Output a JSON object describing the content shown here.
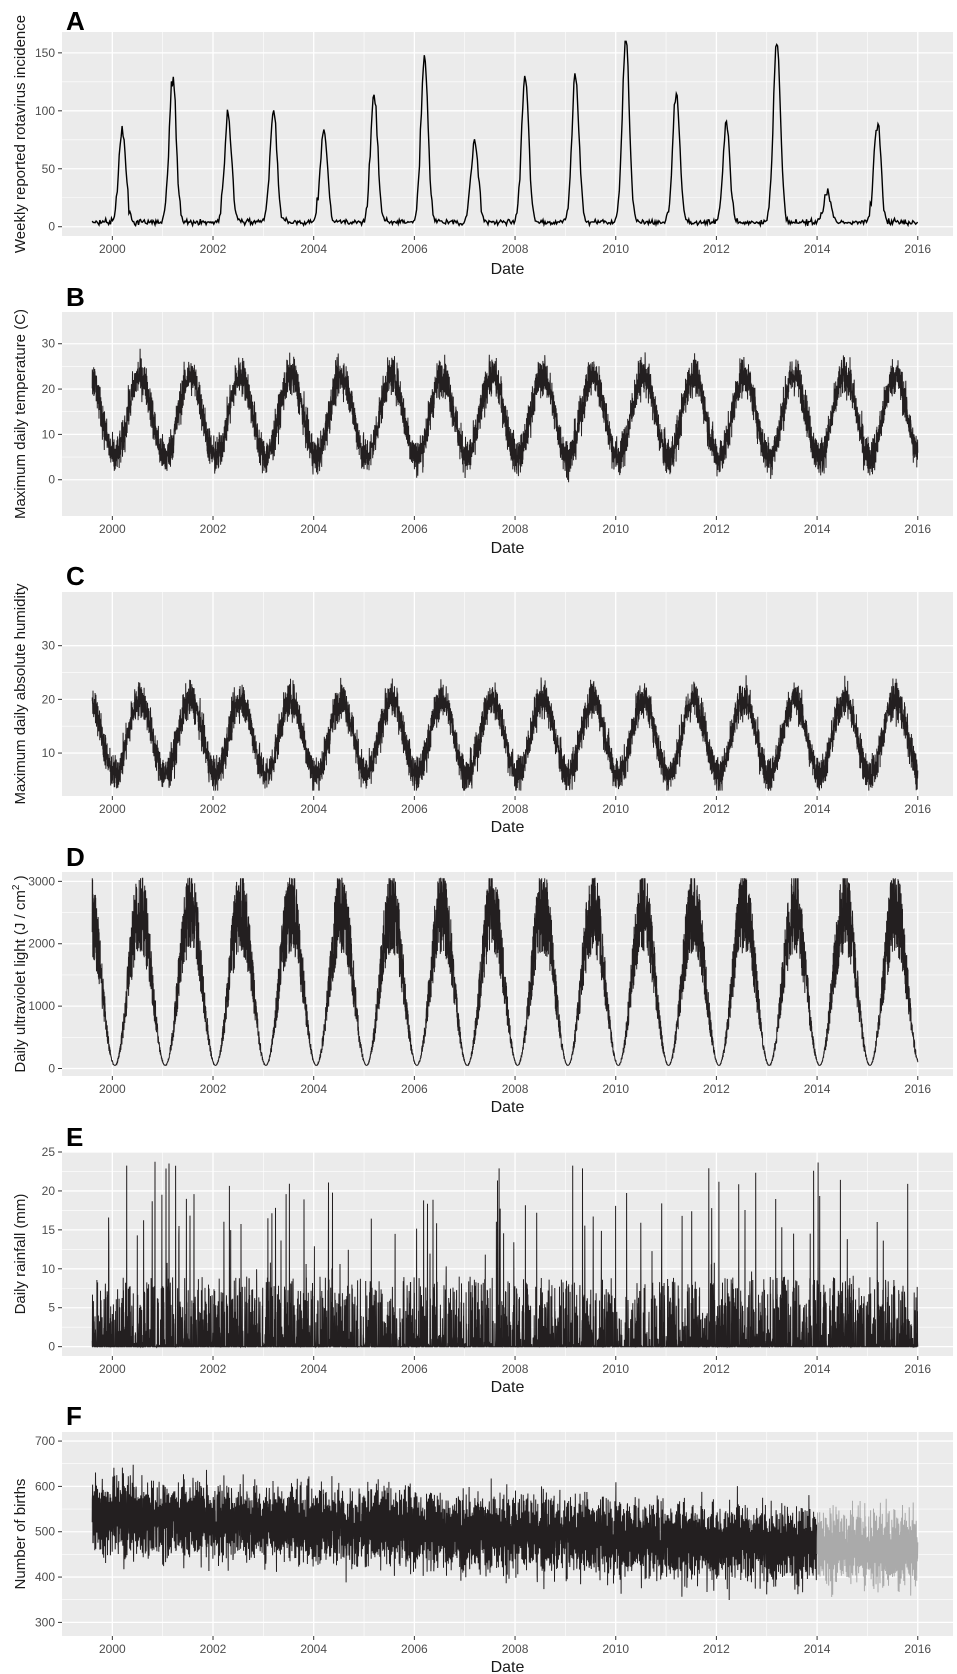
{
  "chart_data": [
    {
      "panel": "A",
      "type": "line",
      "xlabel": "Date",
      "ylabel": "Weekly reported rotavirus incidence",
      "x_ticks": [
        "2000",
        "2002",
        "2004",
        "2006",
        "2008",
        "2010",
        "2012",
        "2014",
        "2016"
      ],
      "y_ticks": [
        "0",
        "50",
        "100",
        "150"
      ],
      "xlim": [
        1999.0,
        2016.7
      ],
      "ylim": [
        -8,
        168
      ],
      "x_start": 1999.6,
      "x_end": 2016.0,
      "baseline": 3,
      "noise": 4,
      "peaks": [
        {
          "x": 2000.2,
          "y": 80
        },
        {
          "x": 2001.2,
          "y": 126
        },
        {
          "x": 2002.3,
          "y": 94
        },
        {
          "x": 2003.2,
          "y": 96
        },
        {
          "x": 2004.2,
          "y": 82
        },
        {
          "x": 2005.2,
          "y": 111
        },
        {
          "x": 2006.2,
          "y": 141
        },
        {
          "x": 2007.2,
          "y": 74
        },
        {
          "x": 2008.2,
          "y": 127
        },
        {
          "x": 2009.2,
          "y": 127
        },
        {
          "x": 2010.2,
          "y": 159
        },
        {
          "x": 2011.2,
          "y": 110
        },
        {
          "x": 2012.2,
          "y": 85
        },
        {
          "x": 2013.2,
          "y": 159
        },
        {
          "x": 2014.2,
          "y": 27
        },
        {
          "x": 2015.2,
          "y": 87
        }
      ],
      "grid": true,
      "series": [
        {
          "values": "weekly",
          "color": "#000000"
        }
      ]
    },
    {
      "panel": "B",
      "type": "line",
      "xlabel": "Date",
      "ylabel": "Maximum daily temperature (C)",
      "x_ticks": [
        "2000",
        "2002",
        "2004",
        "2006",
        "2008",
        "2010",
        "2012",
        "2014",
        "2016"
      ],
      "y_ticks": [
        "0",
        "10",
        "20",
        "30"
      ],
      "xlim": [
        1999.0,
        2016.7
      ],
      "ylim": [
        -8,
        37
      ],
      "x_start": 1999.6,
      "x_end": 2016.0,
      "seasonal_mean": 14,
      "seasonal_amplitude": 9,
      "noise": 5,
      "range_min": -6,
      "range_max": 35,
      "grid": true,
      "series": [
        {
          "values": "daily",
          "color": "#231f20"
        }
      ]
    },
    {
      "panel": "C",
      "type": "line",
      "xlabel": "Date",
      "ylabel": "Maximum daily absolute humidity",
      "x_ticks": [
        "2000",
        "2002",
        "2004",
        "2006",
        "2008",
        "2010",
        "2012",
        "2014",
        "2016"
      ],
      "y_ticks": [
        "10",
        "20",
        "30"
      ],
      "xlim": [
        1999.0,
        2016.7
      ],
      "ylim": [
        2,
        40
      ],
      "x_start": 1999.6,
      "x_end": 2016.0,
      "seasonal_mean": 13,
      "seasonal_amplitude": 7,
      "noise": 4,
      "range_min": 3,
      "range_max": 38,
      "grid": true,
      "series": [
        {
          "values": "daily",
          "color": "#231f20"
        }
      ]
    },
    {
      "panel": "D",
      "type": "line",
      "xlabel": "Date",
      "ylabel": "Daily ultraviolet light (J / cm",
      "ylabel_superscript": "2",
      "ylabel_suffix": " )",
      "x_ticks": [
        "2000",
        "2002",
        "2004",
        "2006",
        "2008",
        "2010",
        "2012",
        "2014",
        "2016"
      ],
      "y_ticks": [
        "0",
        "1000",
        "2000",
        "3000"
      ],
      "xlim": [
        1999.0,
        2016.7
      ],
      "ylim": [
        -120,
        3150
      ],
      "x_start": 1999.6,
      "x_end": 2016.0,
      "seasonal_mean": 1300,
      "seasonal_amplitude": 1250,
      "noise": 700,
      "range_min": 0,
      "range_max": 3050,
      "grid": true,
      "series": [
        {
          "values": "daily",
          "color": "#231f20"
        }
      ]
    },
    {
      "panel": "E",
      "type": "line",
      "xlabel": "Date",
      "ylabel": "Daily rainfall (mm)",
      "x_ticks": [
        "2000",
        "2002",
        "2004",
        "2006",
        "2008",
        "2010",
        "2012",
        "2014",
        "2016"
      ],
      "y_ticks": [
        "0",
        "5",
        "10",
        "15",
        "20",
        "25"
      ],
      "xlim": [
        1999.0,
        2016.7
      ],
      "ylim": [
        -1.2,
        25
      ],
      "x_start": 1999.6,
      "x_end": 2016.0,
      "range_min": 0,
      "range_max": 24,
      "grid": true,
      "series": [
        {
          "values": "daily",
          "color": "#231f20"
        }
      ]
    },
    {
      "panel": "F",
      "type": "line",
      "xlabel": "Date",
      "ylabel": "Number of births",
      "x_ticks": [
        "2000",
        "2002",
        "2004",
        "2006",
        "2008",
        "2010",
        "2012",
        "2014",
        "2016"
      ],
      "y_ticks": [
        "300",
        "400",
        "500",
        "600",
        "700"
      ],
      "xlim": [
        1999.0,
        2016.7
      ],
      "ylim": [
        270,
        720
      ],
      "x_start": 1999.6,
      "x_end": 2016.0,
      "split_x": 2014.0,
      "mean_start": 535,
      "mean_end": 460,
      "noise": 70,
      "range_min": 280,
      "range_max": 710,
      "grid": true,
      "series": [
        {
          "values": "daily (1999.6–2014.0)",
          "color": "#231f20"
        },
        {
          "values": "daily (2014.0–2016.0)",
          "color": "#aaaaaa"
        }
      ]
    }
  ],
  "panel_letters": [
    "A",
    "B",
    "C",
    "D",
    "E",
    "F"
  ],
  "colors": {
    "panel_background": "#ebebeb",
    "grid_major": "#ffffff",
    "line": "#231f20",
    "line_projected": "#aaaaaa",
    "tick_text": "#4d4d4d"
  }
}
